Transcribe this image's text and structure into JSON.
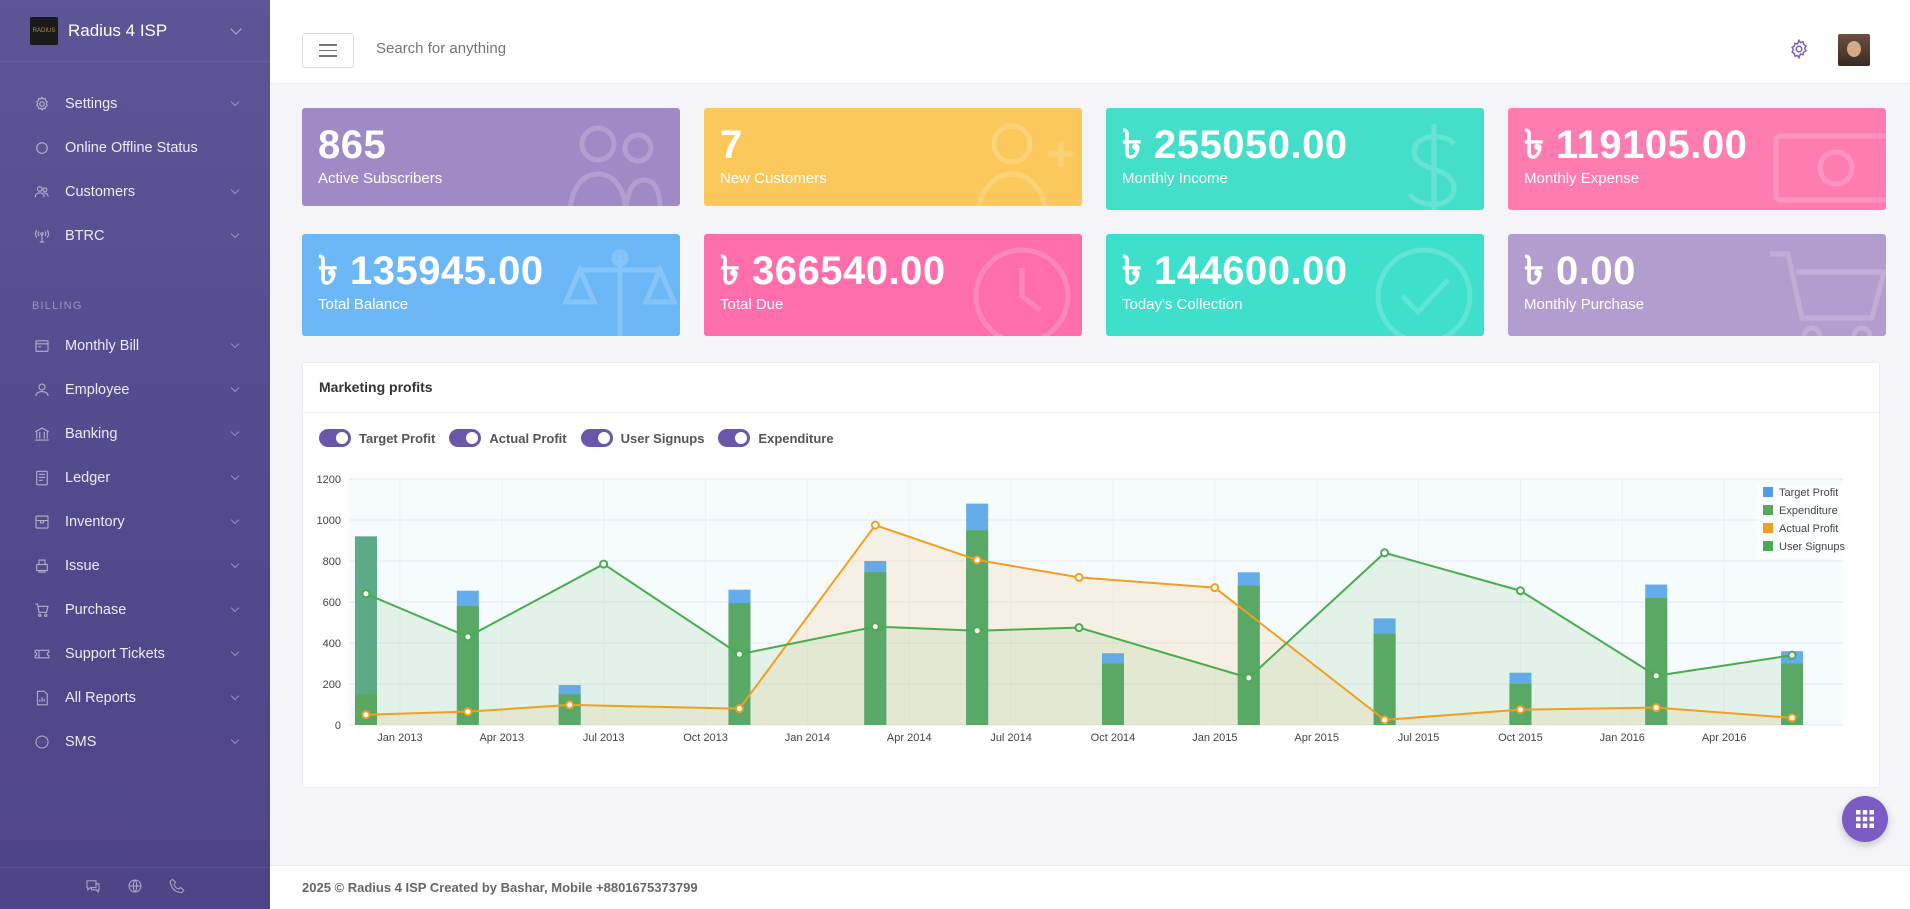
{
  "app": {
    "title": "Radius 4 ISP",
    "logo_text": "RADIUS"
  },
  "sidebar": {
    "items_top": [
      {
        "label": "Settings",
        "icon": "gear-icon",
        "chevron": true
      },
      {
        "label": "Online Offline Status",
        "icon": "circle-icon",
        "chevron": false
      },
      {
        "label": "Customers",
        "icon": "users-icon",
        "chevron": true
      },
      {
        "label": "BTRC",
        "icon": "antenna-icon",
        "chevron": true
      }
    ],
    "section_label": "BILLING",
    "items_billing": [
      {
        "label": "Monthly Bill",
        "icon": "bill-icon"
      },
      {
        "label": "Employee",
        "icon": "user-icon"
      },
      {
        "label": "Banking",
        "icon": "bank-icon"
      },
      {
        "label": "Ledger",
        "icon": "ledger-icon"
      },
      {
        "label": "Inventory",
        "icon": "box-icon"
      },
      {
        "label": "Issue",
        "icon": "printer-icon"
      },
      {
        "label": "Purchase",
        "icon": "cart-icon"
      },
      {
        "label": "Support Tickets",
        "icon": "ticket-icon"
      },
      {
        "label": "All Reports",
        "icon": "report-icon"
      },
      {
        "label": "SMS",
        "icon": "sms-icon"
      }
    ],
    "footer_icons": [
      "chat-icon",
      "globe-icon",
      "phone-icon"
    ]
  },
  "topbar": {
    "search_placeholder": "Search for anything"
  },
  "cards": [
    {
      "value": "865",
      "label": "Active Subscribers",
      "color": "#a08ac5",
      "icon": "users-icon"
    },
    {
      "value": "7",
      "label": "New Customers",
      "color": "#fcc85b",
      "icon": "user-plus-icon"
    },
    {
      "value": "৳ 255050.00",
      "label": "Monthly Income",
      "color": "#45dfc9",
      "icon": "dollar-icon"
    },
    {
      "value": "৳ 119105.00",
      "label": "Monthly Expense",
      "color": "#ff7cb0",
      "icon": "money-icon"
    },
    {
      "value": "৳ 135945.00",
      "label": "Total Balance",
      "color": "#6cb8f7",
      "icon": "scale-icon"
    },
    {
      "value": "৳ 366540.00",
      "label": "Total Due",
      "color": "#ff6eab",
      "icon": "clock-icon"
    },
    {
      "value": "৳ 144600.00",
      "label": "Today's Collection",
      "color": "#3ee0cc",
      "icon": "check-circle-icon"
    },
    {
      "value": "৳ 0.00",
      "label": "Monthly Purchase",
      "color": "#b29dcf",
      "icon": "cart-icon"
    }
  ],
  "panel": {
    "title": "Marketing profits",
    "toggles": [
      {
        "label": "Target Profit",
        "on": true
      },
      {
        "label": "Actual Profit",
        "on": true
      },
      {
        "label": "User Signups",
        "on": true
      },
      {
        "label": "Expenditure",
        "on": true
      }
    ]
  },
  "chart_data": {
    "type": "bar",
    "x_ticks": [
      "Jan 2013",
      "Apr 2013",
      "Jul 2013",
      "Oct 2013",
      "Jan 2014",
      "Apr 2014",
      "Jul 2014",
      "Oct 2014",
      "Jan 2015",
      "Apr 2015",
      "Jul 2015",
      "Oct 2015",
      "Jan 2016",
      "Apr 2016"
    ],
    "ylim": [
      0,
      1200
    ],
    "y_ticks": [
      0,
      200,
      400,
      600,
      800,
      1000,
      1200
    ],
    "legend_position": "top-right",
    "legend": [
      "Target Profit",
      "Expenditure",
      "Actual Profit",
      "User Signups"
    ],
    "colors": {
      "target": "#4a9fe6",
      "expenditure": "#5aa85f",
      "actual": "#f0a020",
      "signups": "#4aab4f"
    },
    "bars": [
      {
        "x": "2012-12",
        "target": 150,
        "expenditure": 920
      },
      {
        "x": "2013-03",
        "target": 655,
        "expenditure": 580
      },
      {
        "x": "2013-06",
        "target": 195,
        "expenditure": 150
      },
      {
        "x": "2013-11",
        "target": 660,
        "expenditure": 595
      },
      {
        "x": "2014-03",
        "target": 800,
        "expenditure": 745
      },
      {
        "x": "2014-06",
        "target": 1080,
        "expenditure": 950
      },
      {
        "x": "2014-10",
        "target": 350,
        "expenditure": 300
      },
      {
        "x": "2015-02",
        "target": 745,
        "expenditure": 680
      },
      {
        "x": "2015-06",
        "target": 520,
        "expenditure": 445
      },
      {
        "x": "2015-10",
        "target": 255,
        "expenditure": 200
      },
      {
        "x": "2016-02",
        "target": 685,
        "expenditure": 620
      },
      {
        "x": "2016-06",
        "target": 360,
        "expenditure": 300
      }
    ],
    "lines": [
      {
        "name": "Actual Profit",
        "points": [
          [
            "2012-12",
            50
          ],
          [
            "2013-03",
            65
          ],
          [
            "2013-06",
            98
          ],
          [
            "2013-11",
            80
          ],
          [
            "2014-03",
            975
          ],
          [
            "2014-06",
            805
          ],
          [
            "2014-09",
            720
          ],
          [
            "2015-01",
            670
          ],
          [
            "2015-06",
            25
          ],
          [
            "2015-10",
            75
          ],
          [
            "2016-02",
            85
          ],
          [
            "2016-06",
            35
          ]
        ]
      },
      {
        "name": "User Signups",
        "points": [
          [
            "2012-12",
            640
          ],
          [
            "2013-03",
            430
          ],
          [
            "2013-07",
            785
          ],
          [
            "2013-11",
            345
          ],
          [
            "2014-03",
            480
          ],
          [
            "2014-06",
            460
          ],
          [
            "2014-09",
            475
          ],
          [
            "2015-02",
            230
          ],
          [
            "2015-06",
            840
          ],
          [
            "2015-10",
            655
          ],
          [
            "2016-02",
            240
          ],
          [
            "2016-06",
            340
          ]
        ]
      }
    ]
  }
}
